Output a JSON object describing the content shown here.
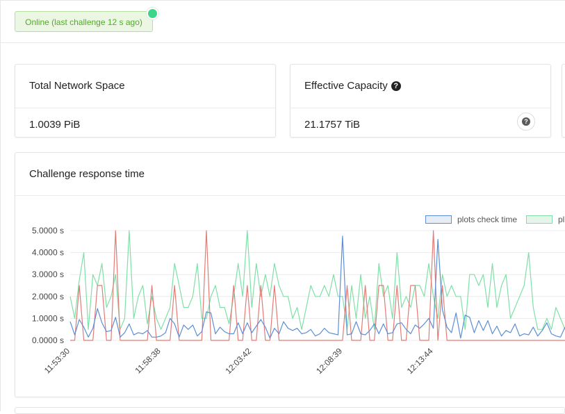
{
  "status": {
    "badge_text": "Online (last challenge 12 s ago)",
    "online_color": "#3fd48a"
  },
  "cards": {
    "network_space": {
      "title": "Total Network Space",
      "value": "1.0039 PiB"
    },
    "effective_capacity": {
      "title": "Effective Capacity",
      "help_icon": "question-circle-icon",
      "value": "21.1757 TiB"
    }
  },
  "chart_panel": {
    "title": "Challenge response time"
  },
  "chart_data": {
    "type": "line",
    "legend": [
      "plots check time",
      "pl"
    ],
    "legend_position": "top-right",
    "y_ticks": [
      "5.0000 s",
      "4.0000 s",
      "3.0000 s",
      "2.0000 s",
      "1.0000 s",
      "0.0000 s"
    ],
    "ylim": [
      0,
      5
    ],
    "x_tick_labels": [
      "11:53:30",
      "11:58:38",
      "12:03:42",
      "12:08:39",
      "12:13:44"
    ],
    "x_tick_positions": [
      0,
      20,
      40,
      60,
      80
    ],
    "grid": true,
    "series": [
      {
        "name": "plots check time",
        "color": "#5b8ed6",
        "values": [
          0.85,
          0.25,
          0.95,
          0.6,
          0.15,
          0.55,
          1.45,
          0.8,
          0.4,
          0.45,
          1.05,
          0.15,
          0.35,
          0.75,
          0.25,
          0.35,
          0.3,
          0.45,
          0.15,
          0.15,
          0.2,
          0.35,
          1.0,
          0.75,
          0.15,
          0.7,
          0.5,
          0.7,
          0.2,
          0.4,
          1.3,
          1.25,
          0.3,
          0.6,
          0.4,
          0.3,
          0.3,
          0.8,
          0.3,
          0.8,
          0.35,
          0.65,
          0.95,
          0.6,
          0.1,
          0.55,
          0.3,
          0.85,
          0.55,
          0.45,
          0.55,
          0.3,
          0.35,
          0.5,
          0.2,
          0.3,
          0.55,
          0.35,
          0.3,
          0.25,
          4.75,
          0.25,
          0.3,
          0.85,
          0.3,
          0.25,
          0.45,
          0.75,
          0.3,
          0.75,
          0.3,
          0.35,
          0.75,
          0.8,
          0.5,
          0.3,
          0.7,
          0.55,
          0.75,
          1.0,
          0.55,
          4.6,
          1.4,
          0.6,
          0.35,
          1.25,
          0.1,
          1.15,
          1.05,
          0.35,
          0.9,
          0.45,
          0.9,
          0.3,
          0.65,
          0.2,
          0.45,
          0.35,
          0.75,
          0.2,
          0.3,
          0.25,
          0.6,
          0.2,
          0.45,
          0.8,
          0.3,
          0.2,
          0.15,
          0.6
        ],
        "scale_note": "values in seconds"
      },
      {
        "name": "pl",
        "color": "#7ee0a6",
        "values": [
          2.0,
          1.0,
          2.75,
          4.0,
          0.5,
          3.0,
          2.5,
          3.5,
          1.5,
          2.0,
          3.0,
          0.5,
          1.0,
          5.0,
          1.0,
          2.0,
          2.5,
          0.75,
          2.0,
          1.0,
          0.5,
          1.0,
          1.5,
          3.5,
          2.5,
          1.5,
          1.5,
          2.0,
          3.5,
          1.0,
          1.0,
          2.0,
          2.5,
          1.5,
          1.5,
          0.75,
          2.0,
          3.5,
          2.0,
          5.0,
          1.5,
          3.5,
          2.0,
          3.0,
          2.0,
          3.5,
          2.5,
          2.0,
          2.0,
          1.0,
          1.5,
          0.5,
          1.5,
          2.5,
          2.0,
          2.0,
          2.5,
          2.0,
          3.0,
          2.0,
          2.0,
          0.5,
          2.5,
          1.0,
          3.0,
          1.0,
          2.0,
          0.5,
          3.5,
          2.0,
          2.5,
          1.0,
          4.0,
          1.5,
          2.0,
          1.5,
          2.5,
          2.5,
          2.0,
          3.5,
          2.0,
          1.0,
          3.0,
          2.0,
          2.5,
          2.0,
          2.0,
          0.5,
          3.0,
          3.0,
          2.5,
          3.0,
          1.5,
          3.5,
          1.5,
          2.5,
          3.0,
          1.0,
          1.5,
          2.0,
          2.5,
          4.0,
          1.5,
          0.5,
          0.5,
          1.0,
          0.5,
          1.5,
          1.0,
          0.5
        ]
      },
      {
        "name": "",
        "color": "#e37a74",
        "values": [
          0,
          0,
          2.5,
          0,
          0,
          0,
          2.5,
          2.5,
          0,
          0,
          5.0,
          0,
          0,
          0,
          0,
          0,
          0,
          0,
          2.5,
          0,
          0,
          0,
          0,
          2.5,
          0,
          0,
          0,
          0,
          0,
          0,
          5.0,
          0,
          0,
          0,
          0,
          0,
          2.5,
          0,
          0,
          2.5,
          0,
          0,
          2.5,
          0,
          0,
          2.5,
          0,
          0,
          0,
          0,
          0,
          0,
          0,
          0,
          0,
          0,
          0,
          0,
          0,
          0,
          0,
          2.5,
          0,
          0,
          0,
          2.5,
          0,
          0,
          2.5,
          2.5,
          0,
          0,
          2.5,
          0,
          0,
          2.5,
          2.5,
          0,
          0,
          0,
          5.0,
          0,
          2.5,
          0,
          0,
          0,
          0,
          0,
          0,
          0,
          0,
          0,
          0,
          0,
          0,
          0,
          0,
          0,
          0,
          0,
          0,
          0,
          0,
          0,
          0,
          0,
          0,
          0,
          0,
          0
        ]
      }
    ]
  }
}
